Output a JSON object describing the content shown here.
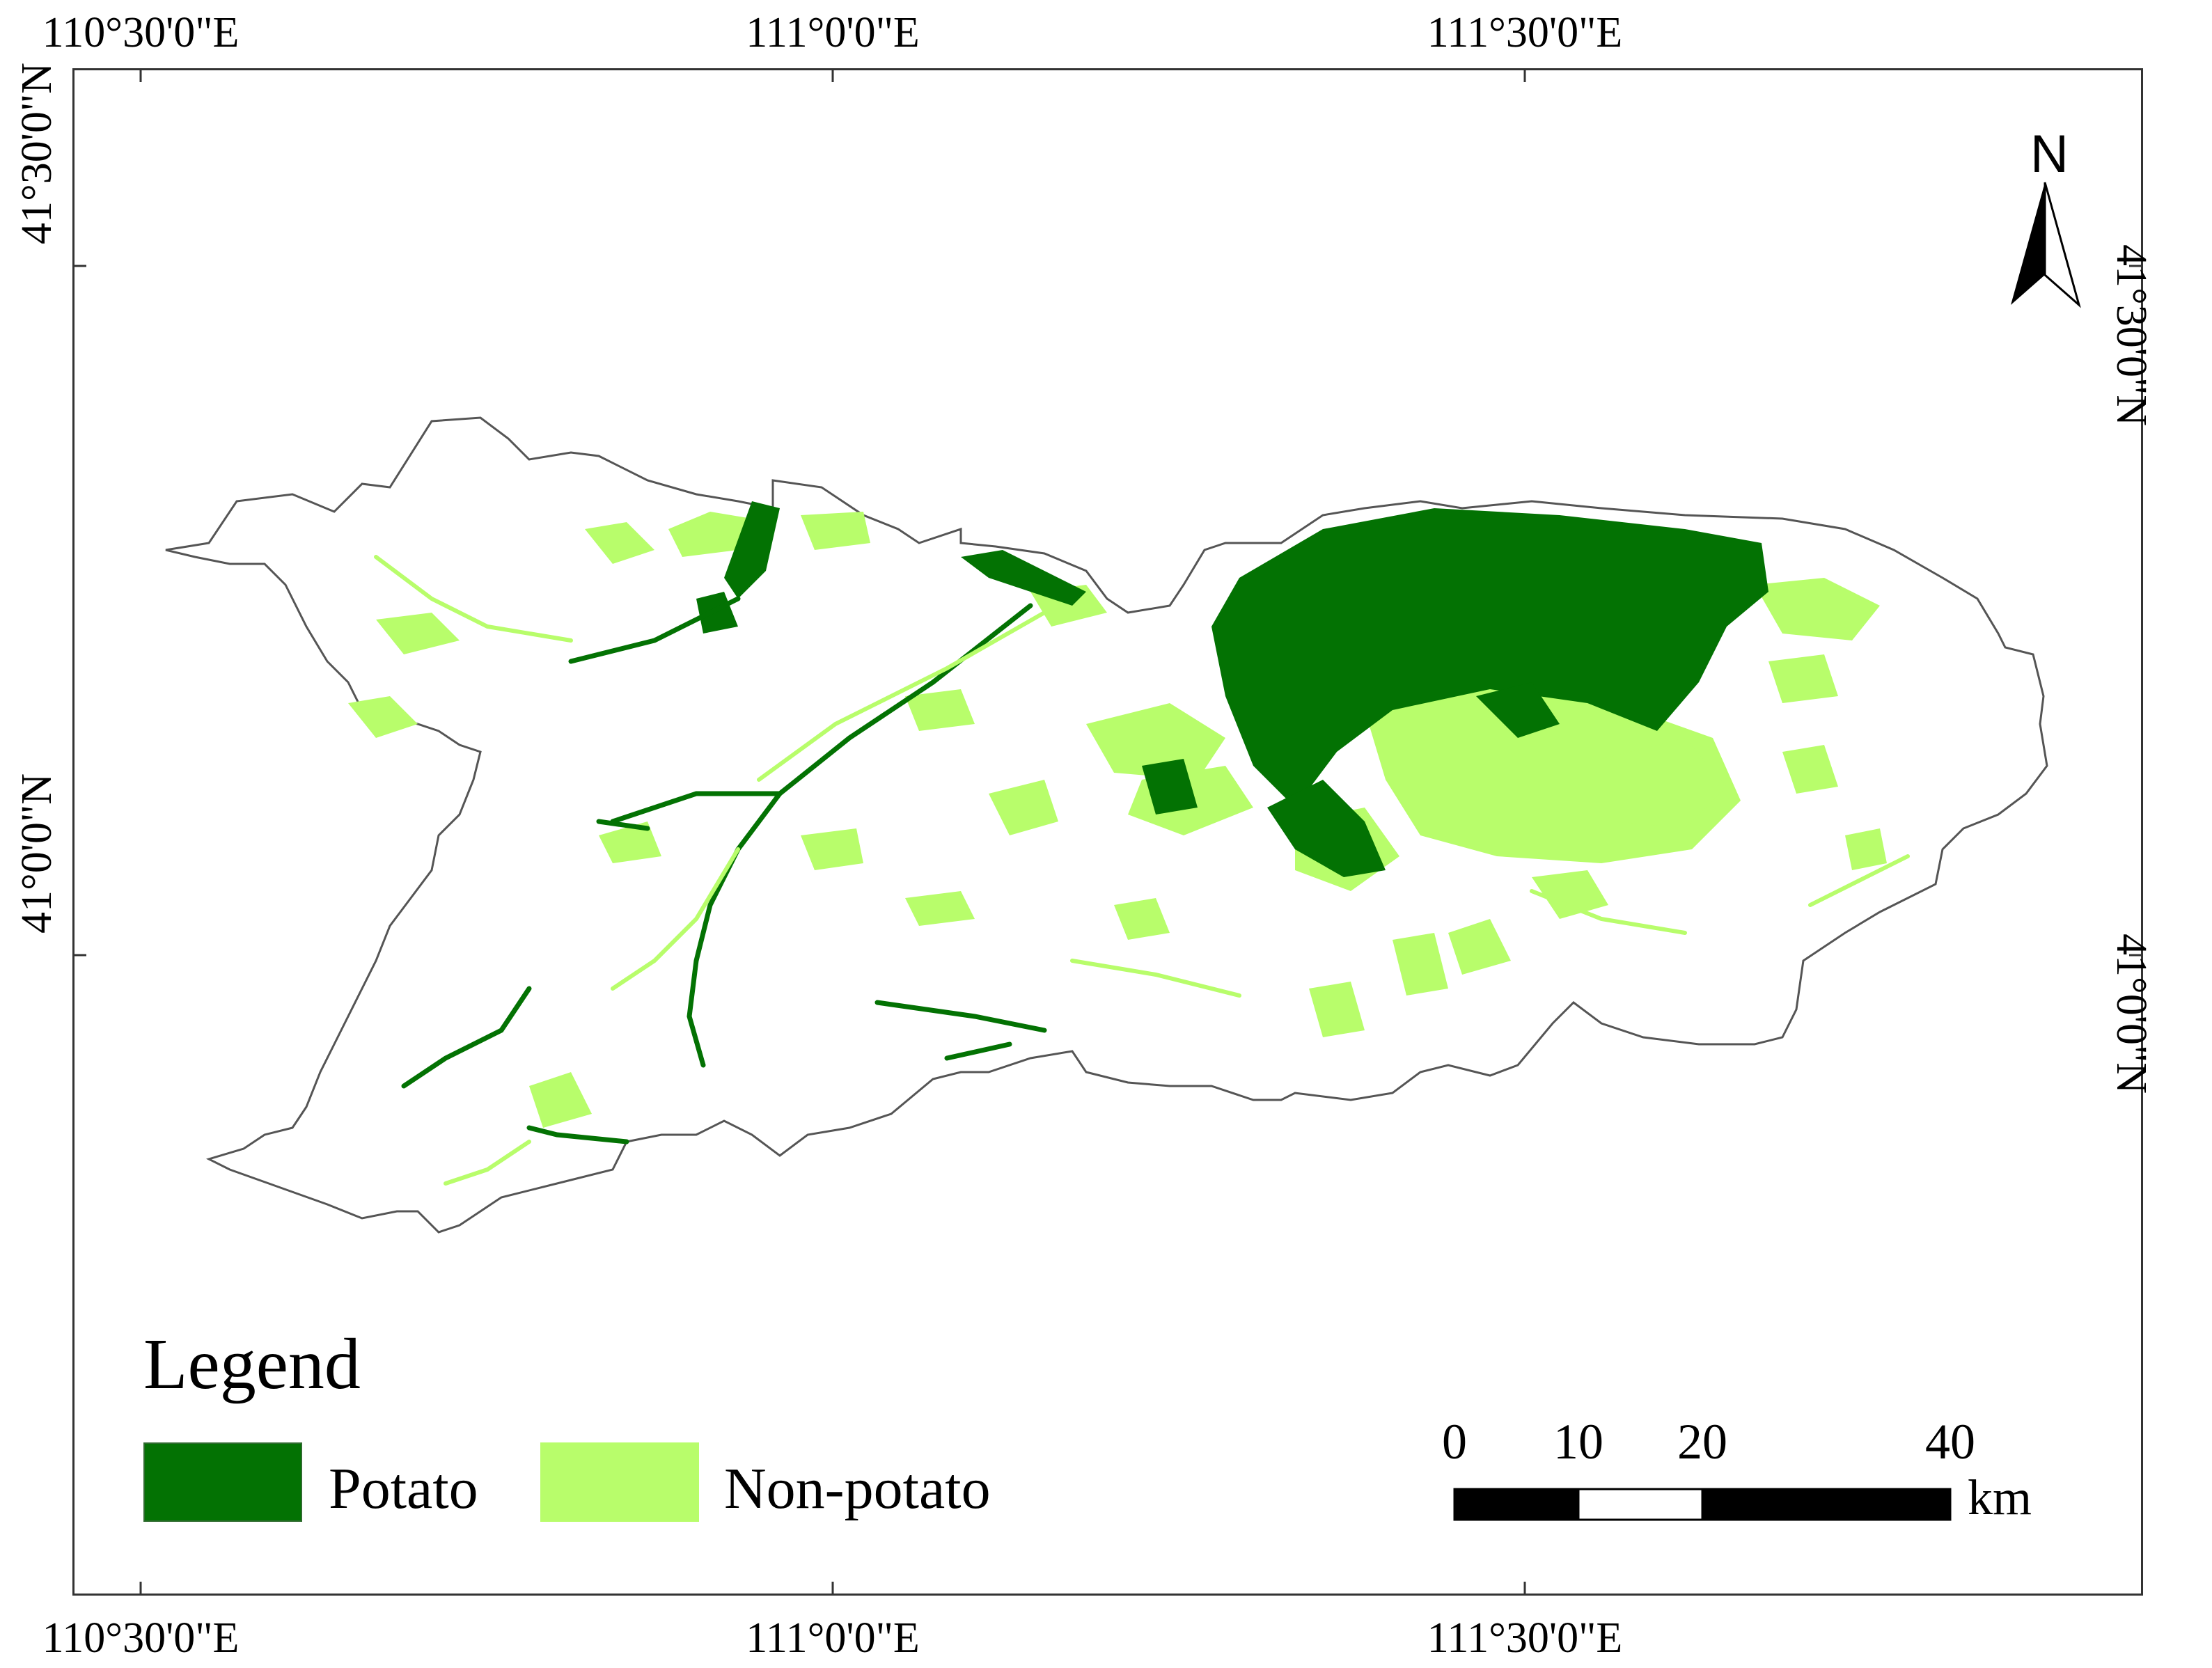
{
  "axes": {
    "top_longitudes": [
      "110°30'0\"E",
      "111°0'0\"E",
      "111°30'0\"E"
    ],
    "bottom_longitudes": [
      "110°30'0\"E",
      "111°0'0\"E",
      "111°30'0\"E"
    ],
    "left_latitudes": [
      "41°30'0\"N",
      "41°0'0\"N"
    ],
    "right_latitudes": [
      "41°30'0\"N",
      "41°0'0\"N"
    ]
  },
  "north_arrow": {
    "letter": "N",
    "icon": "north-arrow-icon"
  },
  "legend": {
    "title": "Legend",
    "items": [
      {
        "label": "Potato",
        "color": "#037203"
      },
      {
        "label": "Non-potato",
        "color": "#b8fd6b"
      }
    ]
  },
  "scale_bar": {
    "ticks": [
      "0",
      "10",
      "20",
      "40"
    ],
    "unit": "km"
  },
  "colors": {
    "boundary": "#555555",
    "frame": "#333333",
    "potato": "#037203",
    "non_potato": "#b8fd6b"
  }
}
